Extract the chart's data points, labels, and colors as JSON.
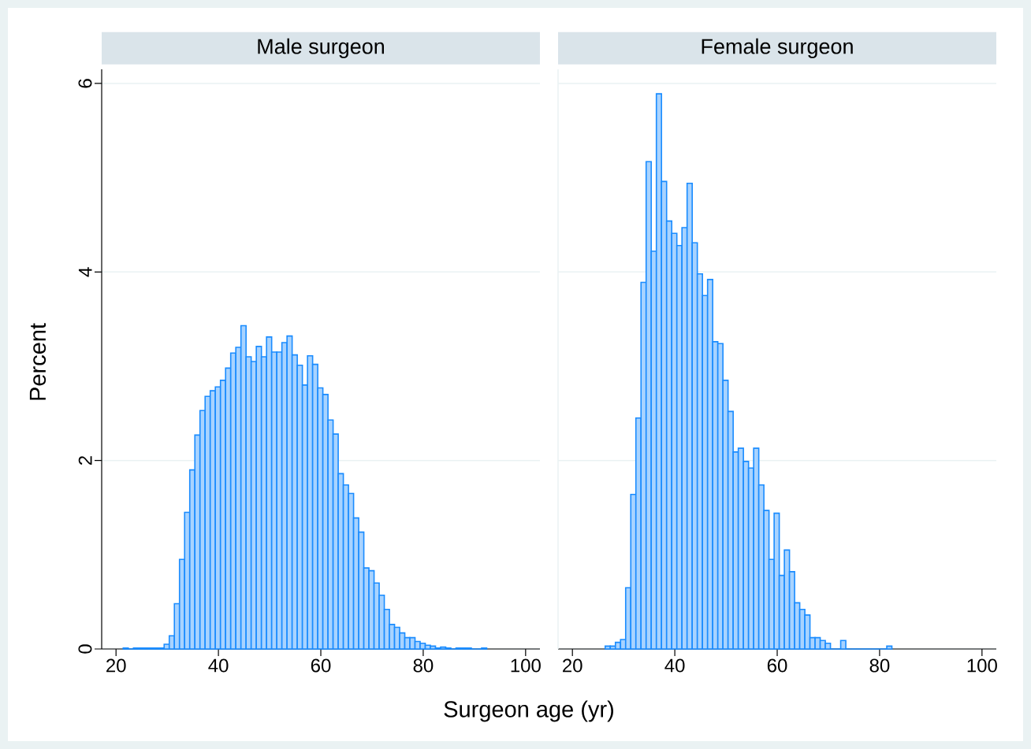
{
  "chart_data": [
    {
      "type": "histogram",
      "title": "Male surgeon",
      "xlabel": "Surgeon age (yr)",
      "ylabel": "Percent",
      "color": "#1a8cff",
      "bins": [
        21.4,
        22.4,
        23.4,
        24.4,
        25.4,
        26.4,
        27.4,
        28.4,
        29.4,
        30.4,
        31.4,
        32.4,
        33.4,
        34.4,
        35.4,
        36.4,
        37.4,
        38.4,
        39.4,
        40.4,
        41.4,
        42.4,
        43.4,
        44.4,
        45.4,
        46.4,
        47.4,
        48.4,
        49.4,
        50.4,
        51.4,
        52.4,
        53.4,
        54.4,
        55.4,
        56.4,
        57.4,
        58.4,
        59.4,
        60.4,
        61.4,
        62.4,
        63.4,
        64.4,
        65.4,
        66.4,
        67.4,
        68.4,
        69.4,
        70.4,
        71.4,
        72.4,
        73.4,
        74.4,
        75.4,
        76.4,
        77.4,
        78.4,
        79.4,
        80.4,
        81.4,
        82.4,
        83.4,
        84.4,
        85.4,
        86.4,
        87.4,
        88.4,
        89.4,
        90.4,
        91.4,
        92.4
      ],
      "values": [
        0.01,
        0,
        0.01,
        0.01,
        0.01,
        0.01,
        0.01,
        0.01,
        0.05,
        0.14,
        0.48,
        0.95,
        1.45,
        1.9,
        2.27,
        2.53,
        2.68,
        2.74,
        2.78,
        2.85,
        2.98,
        3.14,
        3.2,
        3.43,
        3.1,
        3.05,
        3.21,
        3.1,
        3.31,
        3.15,
        3.15,
        3.25,
        3.32,
        3.12,
        3.01,
        2.8,
        3.11,
        3.02,
        2.77,
        2.7,
        2.43,
        2.28,
        1.86,
        1.74,
        1.65,
        1.39,
        1.24,
        0.86,
        0.83,
        0.7,
        0.57,
        0.42,
        0.26,
        0.23,
        0.17,
        0.12,
        0.12,
        0.08,
        0.06,
        0.04,
        0.03,
        0.01,
        0.02,
        0.01,
        0,
        0.01,
        0.01,
        0.01,
        0,
        0,
        0.01
      ],
      "xlim": [
        17.2,
        102.8
      ],
      "xticks": [
        20,
        40,
        60,
        80,
        100
      ],
      "ylim": [
        0,
        6.15
      ],
      "yticks": [
        0,
        2,
        4,
        6
      ],
      "grid": "y"
    },
    {
      "type": "histogram",
      "title": "Female surgeon",
      "color": "#1a8cff",
      "bins": [
        26.4,
        27.4,
        28.4,
        29.4,
        30.4,
        31.4,
        32.4,
        33.4,
        34.4,
        35.4,
        36.4,
        37.4,
        38.4,
        39.4,
        40.4,
        41.4,
        42.4,
        43.4,
        44.4,
        45.4,
        46.4,
        47.4,
        48.4,
        49.4,
        50.4,
        51.4,
        52.4,
        53.4,
        54.4,
        55.4,
        56.4,
        57.4,
        58.4,
        59.4,
        60.4,
        61.4,
        62.4,
        63.4,
        64.4,
        65.4,
        66.4,
        67.4,
        68.4,
        69.4,
        70.4,
        71.4,
        72.4,
        73.4,
        74.4,
        75.4,
        76.4,
        77.4,
        78.4,
        79.4,
        80.4,
        81.4,
        82.4
      ],
      "values": [
        0.03,
        0.03,
        0.07,
        0.1,
        0.65,
        1.64,
        2.45,
        3.89,
        5.17,
        4.22,
        5.89,
        4.96,
        4.54,
        4.41,
        4.28,
        4.47,
        4.94,
        4.31,
        3.98,
        3.75,
        3.92,
        3.26,
        3.24,
        2.85,
        2.52,
        2.09,
        2.13,
        1.99,
        1.92,
        2.13,
        1.74,
        1.47,
        0.95,
        1.44,
        0.78,
        1.05,
        0.82,
        0.49,
        0.42,
        0.36,
        0.12,
        0.12,
        0.09,
        0.06,
        0,
        0,
        0.09,
        0,
        0,
        0,
        0,
        0,
        0,
        0,
        0,
        0.03
      ],
      "xlim": [
        17.2,
        102.8
      ],
      "xticks": [
        20,
        40,
        60,
        80,
        100
      ],
      "ylim": [
        0,
        6.15
      ],
      "yticks": [
        0,
        2,
        4,
        6
      ],
      "grid": "y",
      "tick_labels": "x"
    }
  ]
}
